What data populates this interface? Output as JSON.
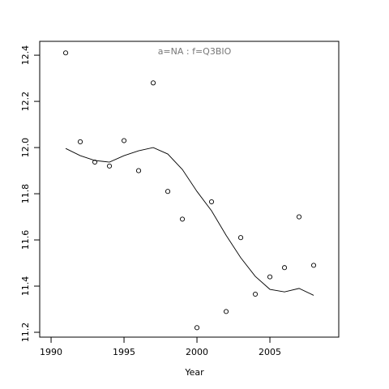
{
  "chart_data": {
    "type": "scatter",
    "title": "a=NA  :  f=Q3BIO",
    "x_label": "Year",
    "x": [
      1991,
      1992,
      1993,
      1994,
      1995,
      1996,
      1997,
      1998,
      1999,
      2000,
      2001,
      2002,
      2003,
      2004,
      2005,
      2006,
      2007,
      2008
    ],
    "series": [
      {
        "type": "scatter",
        "color": "#000000",
        "values": [
          12.41,
          12.025,
          11.937,
          11.92,
          12.03,
          11.9,
          12.28,
          11.81,
          11.69,
          11.22,
          11.765,
          11.29,
          11.61,
          11.365,
          11.44,
          11.48,
          11.7,
          11.49
        ]
      },
      {
        "type": "line",
        "color": "#000000",
        "values": [
          11.996,
          11.965,
          11.944,
          11.937,
          11.965,
          11.986,
          12.0,
          11.972,
          11.905,
          11.81,
          11.726,
          11.62,
          11.523,
          11.442,
          11.386,
          11.375,
          11.39,
          11.36
        ]
      }
    ],
    "xlim": [
      1989.22,
      2009.72
    ],
    "ylim": [
      11.179,
      12.46
    ],
    "xticks": [
      1990,
      1995,
      2000,
      2005
    ],
    "yticks": [
      11.2,
      11.4,
      11.6,
      11.8,
      {
        "value": 12,
        "label": "12.0"
      },
      12.2,
      12.4
    ]
  }
}
